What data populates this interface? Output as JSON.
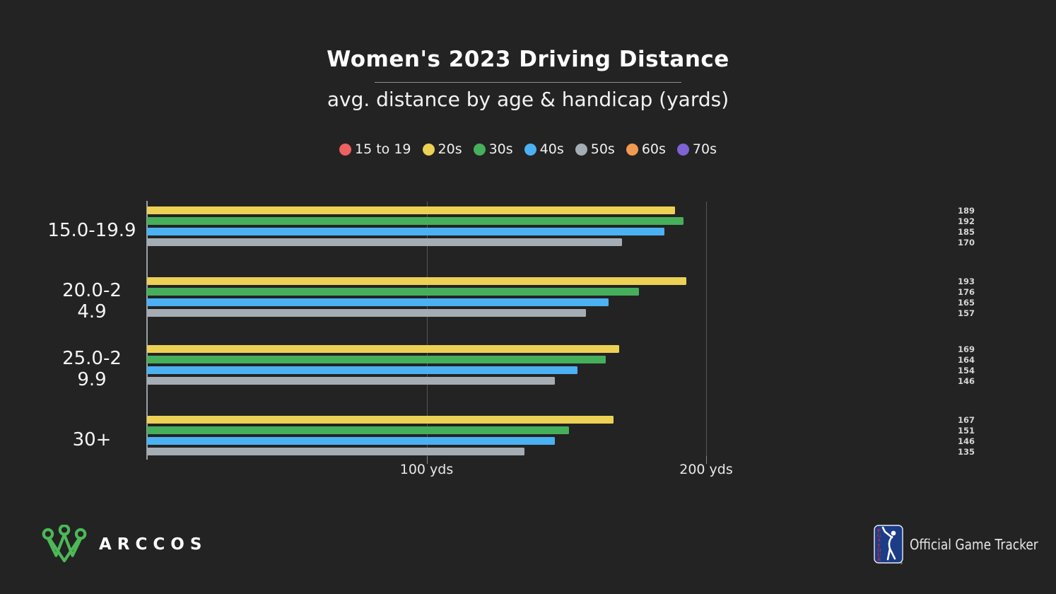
{
  "title": "Women's 2023 Driving Distance",
  "subtitle": "avg. distance by age & handicap (yards)",
  "legend": [
    {
      "label": "15 to 19",
      "color": "#ee6160"
    },
    {
      "label": "20s",
      "color": "#ecd155"
    },
    {
      "label": "30s",
      "color": "#46af5b"
    },
    {
      "label": "40s",
      "color": "#4bb1f2"
    },
    {
      "label": "50s",
      "color": "#a4adb3"
    },
    {
      "label": "60s",
      "color": "#f29a52"
    },
    {
      "label": "70s",
      "color": "#7d63d4"
    }
  ],
  "chart_data": {
    "type": "bar",
    "orientation": "horizontal",
    "title": "Women's 2023 Driving Distance",
    "subtitle": "avg. distance by age & handicap (yards)",
    "unit": "yards",
    "categories": [
      "15.0-19.9",
      "20.0-24.9",
      "25.0-29.9",
      "30+"
    ],
    "category_display_lines": [
      [
        "15.0-19.9"
      ],
      [
        "20.0-2",
        "4.9"
      ],
      [
        "25.0-2",
        "9.9"
      ],
      [
        "30+"
      ]
    ],
    "series": [
      {
        "name": "20s",
        "color": "#ecd155",
        "values": [
          189,
          193,
          169,
          167
        ]
      },
      {
        "name": "30s",
        "color": "#46af5b",
        "values": [
          192,
          176,
          164,
          151
        ]
      },
      {
        "name": "40s",
        "color": "#4bb1f2",
        "values": [
          185,
          165,
          154,
          146
        ]
      },
      {
        "name": "50s",
        "color": "#a4adb3",
        "values": [
          170,
          157,
          146,
          135
        ]
      }
    ],
    "xlim": [
      0,
      250
    ],
    "x_ticks": [
      {
        "value": 100,
        "label": "100 yds"
      },
      {
        "value": 200,
        "label": "200 yds"
      }
    ],
    "grid": "vertical",
    "legend_position": "top",
    "value_labels_position": "right-margin"
  },
  "footer": {
    "arccos_label": "ARCCOS",
    "pga_label": "Official Game Tracker",
    "pga_registered": "®"
  },
  "colors": {
    "background": "#232323",
    "axis": "#9aa1a6",
    "gridline": "#565656",
    "title_text": "#ffffff",
    "value_label": "#d6d6d6",
    "arccos_green": "#4db858",
    "pga_blue": "#1b3c86",
    "pga_red": "#cf2a3d"
  }
}
